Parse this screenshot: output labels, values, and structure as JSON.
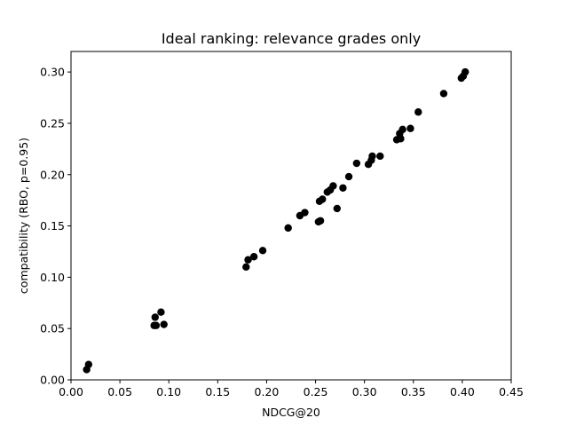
{
  "chart_data": {
    "type": "scatter",
    "title": "Ideal ranking: relevance grades only",
    "xlabel": "NDCG@20",
    "ylabel": "compatibility (RBO, p=0.95)",
    "xlim": [
      0.0,
      0.45
    ],
    "ylim": [
      0.0,
      0.32
    ],
    "xticks": [
      "0.00",
      "0.05",
      "0.10",
      "0.15",
      "0.20",
      "0.25",
      "0.30",
      "0.35",
      "0.40",
      "0.45"
    ],
    "yticks": [
      "0.00",
      "0.05",
      "0.10",
      "0.15",
      "0.20",
      "0.25",
      "0.30"
    ],
    "grid": false,
    "marker_color": "#000000",
    "points": [
      [
        0.016,
        0.01
      ],
      [
        0.018,
        0.015
      ],
      [
        0.085,
        0.053
      ],
      [
        0.086,
        0.061
      ],
      [
        0.087,
        0.053
      ],
      [
        0.092,
        0.066
      ],
      [
        0.095,
        0.054
      ],
      [
        0.179,
        0.11
      ],
      [
        0.181,
        0.117
      ],
      [
        0.187,
        0.12
      ],
      [
        0.196,
        0.126
      ],
      [
        0.222,
        0.148
      ],
      [
        0.234,
        0.16
      ],
      [
        0.239,
        0.163
      ],
      [
        0.253,
        0.154
      ],
      [
        0.254,
        0.174
      ],
      [
        0.255,
        0.155
      ],
      [
        0.257,
        0.176
      ],
      [
        0.262,
        0.183
      ],
      [
        0.265,
        0.185
      ],
      [
        0.268,
        0.189
      ],
      [
        0.272,
        0.167
      ],
      [
        0.278,
        0.187
      ],
      [
        0.284,
        0.198
      ],
      [
        0.292,
        0.211
      ],
      [
        0.304,
        0.21
      ],
      [
        0.307,
        0.214
      ],
      [
        0.308,
        0.218
      ],
      [
        0.316,
        0.218
      ],
      [
        0.333,
        0.234
      ],
      [
        0.336,
        0.24
      ],
      [
        0.337,
        0.235
      ],
      [
        0.339,
        0.244
      ],
      [
        0.347,
        0.245
      ],
      [
        0.355,
        0.261
      ],
      [
        0.381,
        0.279
      ],
      [
        0.399,
        0.294
      ],
      [
        0.401,
        0.296
      ],
      [
        0.403,
        0.3
      ]
    ]
  }
}
